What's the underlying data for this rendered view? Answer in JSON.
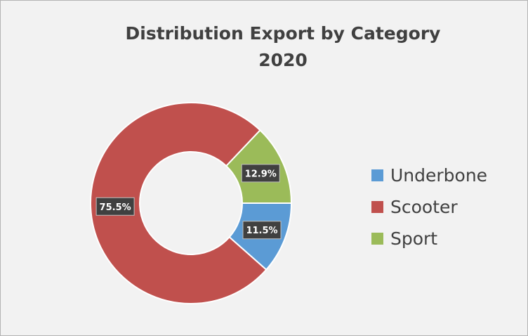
{
  "chart_data": {
    "type": "pie",
    "title": "Distribution Export by Category",
    "subtitle": "2020",
    "categories": [
      "Underbone",
      "Scooter",
      "Sport"
    ],
    "values": [
      11.5,
      75.5,
      12.9
    ],
    "labels": [
      "11.5%",
      "75.5%",
      "12.9%"
    ],
    "colors": [
      "#5b9bd5",
      "#c0504d",
      "#9bbb59"
    ],
    "legend": "right",
    "donut": true
  }
}
